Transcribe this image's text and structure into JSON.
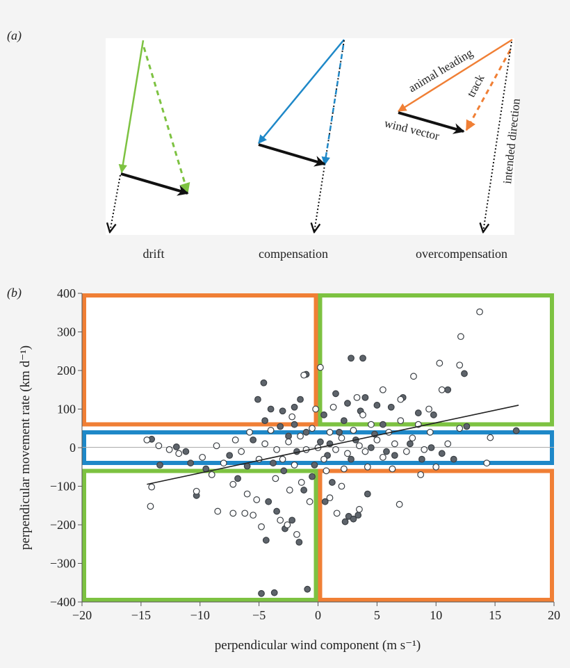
{
  "panel_a": {
    "label": "(a)",
    "captions": [
      "drift",
      "compensation",
      "overcompensation"
    ],
    "annotations": {
      "animal_heading": "animal heading",
      "track": "track",
      "wind_vector": "wind vector",
      "intended_direction": "intended direction"
    },
    "colors": {
      "drift": "#7dc241",
      "compensation": "#1e88c8",
      "overcompensation": "#f07f35",
      "wind": "#111111"
    }
  },
  "panel_b": {
    "label": "(b)"
  },
  "chart_data": {
    "type": "scatter",
    "xlabel": "perpendicular wind component (m s⁻¹)",
    "ylabel": "perpendicular movement rate (km d⁻¹)",
    "xlim": [
      -20,
      20
    ],
    "ylim": [
      -400,
      400
    ],
    "xticks": [
      -20,
      -15,
      -10,
      -5,
      0,
      5,
      10,
      15,
      20
    ],
    "yticks": [
      400,
      300,
      200,
      100,
      0,
      -100,
      -200,
      -300,
      -400
    ],
    "xtick_labels": [
      "−20",
      "−15",
      "−10",
      "−5",
      "0",
      "5",
      "10",
      "15",
      "20"
    ],
    "ytick_labels": [
      "400",
      "300",
      "200",
      "100",
      "0",
      "−100",
      "−200",
      "−300",
      "−400"
    ],
    "regions": [
      {
        "name": "overcompensation-upper-left",
        "color": "#f07f35",
        "x": [
          -20,
          0
        ],
        "y": [
          55,
          400
        ]
      },
      {
        "name": "drift-upper-right",
        "color": "#7dc241",
        "x": [
          0,
          20
        ],
        "y": [
          55,
          400
        ]
      },
      {
        "name": "compensation-band",
        "color": "#1e88c8",
        "x": [
          -20,
          20
        ],
        "y": [
          -45,
          45
        ]
      },
      {
        "name": "drift-lower-left",
        "color": "#7dc241",
        "x": [
          -20,
          0
        ],
        "y": [
          -400,
          -55
        ]
      },
      {
        "name": "overcompensation-lower-right",
        "color": "#f07f35",
        "x": [
          0,
          20
        ],
        "y": [
          -400,
          -55
        ]
      }
    ],
    "regression_line": {
      "x": [
        -14.5,
        17
      ],
      "y": [
        -95,
        110
      ]
    },
    "series": [
      {
        "name": "filled",
        "color": "#5e646b",
        "points": [
          [
            12.4,
            192
          ],
          [
            2.8,
            232
          ],
          [
            3.8,
            232
          ],
          [
            -1,
            190
          ],
          [
            -4.6,
            168
          ],
          [
            16.8,
            44
          ],
          [
            -10.3,
            -124
          ],
          [
            -4.8,
            -378
          ],
          [
            -3.7,
            -376
          ],
          [
            -0.9,
            -367
          ],
          [
            2.6,
            -178
          ],
          [
            3,
            -185
          ],
          [
            3.4,
            -175
          ],
          [
            2.3,
            -192
          ],
          [
            -13.4,
            -45
          ],
          [
            -14.1,
            22
          ],
          [
            -11.2,
            -10
          ],
          [
            -12,
            2
          ],
          [
            -10.8,
            -40
          ],
          [
            -9.5,
            -55
          ],
          [
            -6,
            -48
          ],
          [
            -5.1,
            125
          ],
          [
            -4,
            100
          ],
          [
            -3,
            95
          ],
          [
            -2,
            105
          ],
          [
            -1.5,
            125
          ],
          [
            1.5,
            140
          ],
          [
            2.5,
            115
          ],
          [
            4,
            130
          ],
          [
            5,
            110
          ],
          [
            6.2,
            105
          ],
          [
            7.2,
            130
          ],
          [
            8.5,
            90
          ],
          [
            9.8,
            85
          ],
          [
            11,
            150
          ],
          [
            12.6,
            55
          ],
          [
            -4.2,
            -140
          ],
          [
            -3.5,
            -165
          ],
          [
            -2.8,
            -210
          ],
          [
            -2.2,
            -188
          ],
          [
            -1.2,
            -110
          ],
          [
            -0.5,
            -75
          ],
          [
            0.6,
            -140
          ],
          [
            1.2,
            -90
          ],
          [
            4.2,
            -120
          ],
          [
            -6.8,
            -80
          ],
          [
            -7.5,
            -20
          ],
          [
            -5.5,
            20
          ],
          [
            -3.2,
            55
          ],
          [
            -2.5,
            30
          ],
          [
            -1.8,
            -10
          ],
          [
            -1,
            40
          ],
          [
            0.2,
            15
          ],
          [
            0.8,
            -20
          ],
          [
            1.8,
            40
          ],
          [
            2.2,
            70
          ],
          [
            3.2,
            20
          ],
          [
            4.5,
            0
          ],
          [
            5.5,
            60
          ],
          [
            6.5,
            -20
          ],
          [
            7.8,
            10
          ],
          [
            8.8,
            -30
          ],
          [
            9.6,
            0
          ],
          [
            10.5,
            -15
          ],
          [
            11.5,
            -30
          ],
          [
            -4.5,
            70
          ],
          [
            -3.8,
            -40
          ],
          [
            -2.9,
            -60
          ],
          [
            -2,
            60
          ],
          [
            -0.3,
            -45
          ],
          [
            0.5,
            85
          ],
          [
            1,
            10
          ],
          [
            2.8,
            -30
          ],
          [
            3.6,
            95
          ],
          [
            4.8,
            35
          ],
          [
            5.8,
            -10
          ],
          [
            -1.6,
            -245
          ],
          [
            -4.4,
            -240
          ]
        ]
      },
      {
        "name": "open",
        "color": "#ffffff",
        "points": [
          [
            13.7,
            352
          ],
          [
            12.1,
            288
          ],
          [
            10.3,
            219
          ],
          [
            12,
            214
          ],
          [
            0.2,
            208
          ],
          [
            -1.2,
            188
          ],
          [
            -14.5,
            20
          ],
          [
            -13.5,
            5
          ],
          [
            14.6,
            26
          ],
          [
            14.3,
            -40
          ],
          [
            -14.1,
            -102
          ],
          [
            -14.2,
            -152
          ],
          [
            -10.3,
            -113
          ],
          [
            6.9,
            -147
          ],
          [
            -8.5,
            -165
          ],
          [
            -7.2,
            -170
          ],
          [
            -6.2,
            -170
          ],
          [
            -5.5,
            -175
          ],
          [
            -4.8,
            -205
          ],
          [
            -3.2,
            -188
          ],
          [
            -2.6,
            -200
          ],
          [
            -1.8,
            -225
          ],
          [
            1,
            -130
          ],
          [
            2,
            -100
          ],
          [
            3.5,
            -160
          ],
          [
            -9,
            -70
          ],
          [
            -8,
            -40
          ],
          [
            -7,
            20
          ],
          [
            -6.5,
            -10
          ],
          [
            -5.8,
            40
          ],
          [
            -5,
            -30
          ],
          [
            -4.5,
            10
          ],
          [
            -4,
            45
          ],
          [
            -3.5,
            -5
          ],
          [
            -3,
            -30
          ],
          [
            -2.5,
            15
          ],
          [
            -2,
            -45
          ],
          [
            -1.5,
            30
          ],
          [
            -1,
            -5
          ],
          [
            -0.5,
            50
          ],
          [
            0,
            0
          ],
          [
            0.5,
            -30
          ],
          [
            1,
            40
          ],
          [
            1.5,
            -5
          ],
          [
            2,
            25
          ],
          [
            2.5,
            -15
          ],
          [
            3,
            45
          ],
          [
            3.5,
            5
          ],
          [
            4,
            -10
          ],
          [
            4.5,
            60
          ],
          [
            5,
            20
          ],
          [
            5.5,
            -25
          ],
          [
            6,
            40
          ],
          [
            6.5,
            10
          ],
          [
            7,
            70
          ],
          [
            7.5,
            -10
          ],
          [
            8,
            25
          ],
          [
            8.5,
            60
          ],
          [
            9,
            -5
          ],
          [
            9.5,
            40
          ],
          [
            10,
            -50
          ],
          [
            11,
            10
          ],
          [
            12,
            50
          ],
          [
            7,
            125
          ],
          [
            8.1,
            185
          ],
          [
            9.4,
            100
          ],
          [
            10.5,
            150
          ],
          [
            5.5,
            150
          ],
          [
            3.3,
            130
          ],
          [
            -2.2,
            80
          ],
          [
            -3.6,
            -80
          ],
          [
            -2.4,
            -110
          ],
          [
            -1.4,
            -90
          ],
          [
            -0.7,
            -140
          ],
          [
            0.7,
            -60
          ],
          [
            1.6,
            -170
          ],
          [
            -6,
            -120
          ],
          [
            -7.2,
            -95
          ],
          [
            -5.2,
            -135
          ],
          [
            2.2,
            -55
          ],
          [
            4.2,
            -50
          ],
          [
            6.3,
            -55
          ],
          [
            8.7,
            -70
          ],
          [
            -8.6,
            5
          ],
          [
            -9.8,
            -25
          ],
          [
            -11.8,
            -15
          ],
          [
            -12.6,
            -5
          ],
          [
            3.8,
            85
          ],
          [
            1.3,
            105
          ],
          [
            -0.2,
            100
          ]
        ]
      }
    ]
  }
}
